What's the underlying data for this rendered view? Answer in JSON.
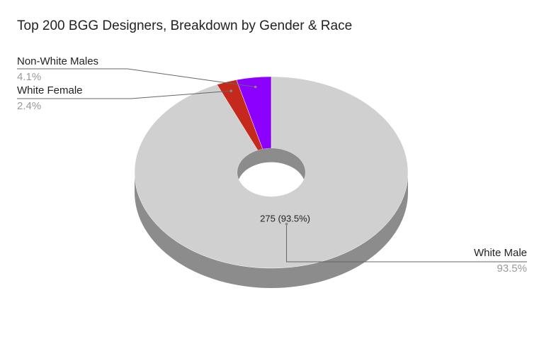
{
  "chart_data": {
    "type": "pie",
    "title": "Top 200 BGG Designers, Breakdown by Gender & Race",
    "categories": [
      "White Male",
      "White Female",
      "Non-White Males"
    ],
    "values": [
      93.5,
      2.4,
      4.1
    ],
    "percent_labels": [
      "93.5%",
      "2.4%",
      "4.1%"
    ],
    "value_labels": [
      "275 (93.5%)",
      null,
      null
    ],
    "colors": [
      "#d0d0d0",
      "#c5291c",
      "#8b00ff"
    ],
    "donut": true,
    "three_d": true
  }
}
